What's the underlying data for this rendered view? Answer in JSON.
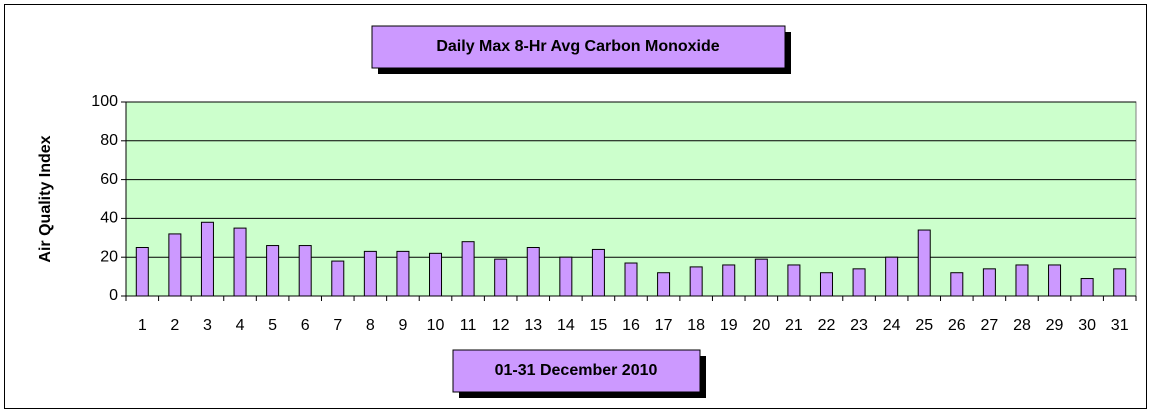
{
  "chart_data": {
    "type": "bar",
    "title": "Daily Max 8-Hr Avg Carbon Monoxide",
    "x_label": "01-31 December 2010",
    "y_label": "Air Quality Index",
    "categories": [
      "1",
      "2",
      "3",
      "4",
      "5",
      "6",
      "7",
      "8",
      "9",
      "10",
      "11",
      "12",
      "13",
      "14",
      "15",
      "16",
      "17",
      "18",
      "19",
      "20",
      "21",
      "22",
      "23",
      "24",
      "25",
      "26",
      "27",
      "28",
      "29",
      "30",
      "31"
    ],
    "values": [
      25,
      32,
      38,
      35,
      26,
      26,
      18,
      23,
      23,
      22,
      28,
      19,
      25,
      20,
      24,
      17,
      12,
      15,
      16,
      19,
      16,
      12,
      14,
      20,
      34,
      12,
      14,
      16,
      16,
      9,
      14
    ],
    "color": "#cc99ff",
    "background": "#ccffcc",
    "ylim": [
      0,
      100
    ],
    "yticks": [
      0,
      20,
      40,
      60,
      80,
      100
    ],
    "grid": true
  }
}
